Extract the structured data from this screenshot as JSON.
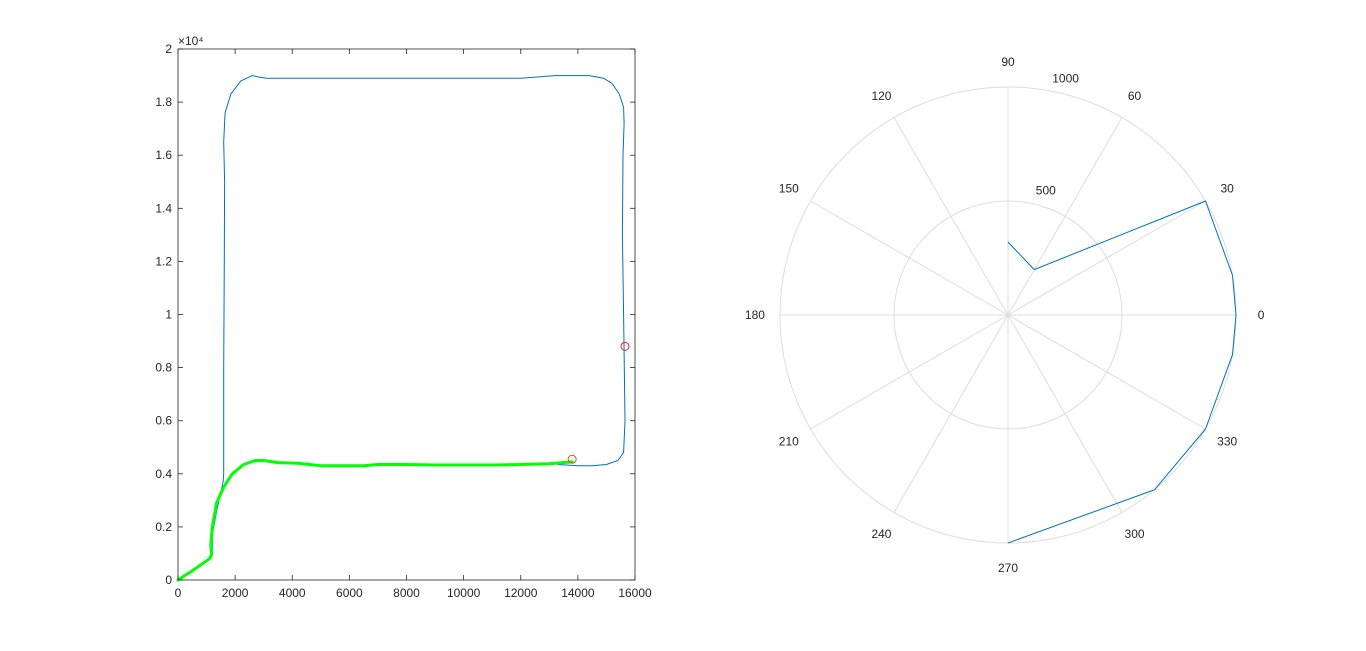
{
  "colors": {
    "path": "#0072BD",
    "track": "#00FF00",
    "marker_red": "#D62728",
    "marker_orange": "#D95319",
    "axis": "#262626",
    "polar_grid": "#DDDDDD",
    "polar_line": "#0072BD"
  },
  "chart_data": [
    {
      "type": "line",
      "x_exponent_label": "",
      "y_exponent_label": "×10⁴",
      "xlim": [
        0,
        16000
      ],
      "ylim": [
        0,
        20000
      ],
      "xticks": [
        0,
        2000,
        4000,
        6000,
        8000,
        10000,
        12000,
        14000,
        16000
      ],
      "xtick_labels": [
        "0",
        "2000",
        "4000",
        "6000",
        "8000",
        "10000",
        "12000",
        "14000",
        "16000"
      ],
      "yticks": [
        0,
        2000,
        4000,
        6000,
        8000,
        10000,
        12000,
        14000,
        16000,
        18000,
        20000
      ],
      "ytick_labels": [
        "0",
        "0.2",
        "0.4",
        "0.6",
        "0.8",
        "1",
        "1.2",
        "1.4",
        "1.6",
        "1.8",
        "2"
      ],
      "grid": false,
      "series": [
        {
          "style": "thin-blue",
          "x": [
            0,
            1100,
            1200,
            1200,
            1350,
            1500,
            1580,
            1600,
            1600,
            1620,
            1630,
            1600,
            1650,
            1850,
            2200,
            2600,
            2800,
            3100,
            4000,
            6000,
            8000,
            10000,
            12000,
            13200,
            13800,
            14400,
            14900,
            15200,
            15450,
            15600,
            15620,
            15580,
            15560,
            15600,
            15650,
            15600,
            15400,
            15000,
            14500,
            14000,
            13300
          ],
          "y": [
            0,
            800,
            1000,
            1700,
            2600,
            3300,
            3700,
            4000,
            8000,
            12000,
            15000,
            16500,
            17600,
            18300,
            18800,
            19000,
            18950,
            18900,
            18900,
            18900,
            18900,
            18900,
            18900,
            19000,
            19000,
            19000,
            18900,
            18700,
            18300,
            17800,
            17200,
            16000,
            13000,
            10000,
            6000,
            4800,
            4500,
            4350,
            4300,
            4300,
            4350
          ]
        },
        {
          "style": "thick-green",
          "x": [
            0,
            500,
            1100,
            1180,
            1150,
            1200,
            1350,
            1600,
            1900,
            2300,
            2700,
            3000,
            3500,
            4200,
            5000,
            6000,
            6500,
            7000,
            8000,
            9000,
            10000,
            11000,
            12000,
            13000,
            13800
          ],
          "y": [
            0,
            350,
            800,
            950,
            1300,
            2000,
            2900,
            3500,
            4000,
            4350,
            4500,
            4500,
            4420,
            4400,
            4300,
            4300,
            4300,
            4350,
            4350,
            4330,
            4330,
            4330,
            4350,
            4380,
            4450
          ]
        }
      ],
      "markers": [
        {
          "x": 15650,
          "y": 8800,
          "color": "red"
        },
        {
          "x": 13800,
          "y": 4550,
          "color": "orange"
        }
      ]
    },
    {
      "type": "polar",
      "rlim": [
        0,
        1000
      ],
      "r_ticks": [
        500,
        1000
      ],
      "r_tick_labels": [
        "500",
        "1000"
      ],
      "theta_ticks_deg": [
        0,
        30,
        60,
        90,
        120,
        150,
        180,
        210,
        240,
        270,
        300,
        330
      ],
      "theta_tick_labels": [
        "0",
        "30",
        "60",
        "90",
        "120",
        "150",
        "180",
        "210",
        "240",
        "270",
        "300",
        "330"
      ],
      "grid": true,
      "series": [
        {
          "theta_deg": [
            90,
            60,
            30,
            10,
            0,
            -10,
            -30,
            -50,
            -90
          ],
          "r": [
            320,
            230,
            1000,
            1000,
            1000,
            1000,
            1000,
            1000,
            1000
          ]
        }
      ]
    }
  ]
}
